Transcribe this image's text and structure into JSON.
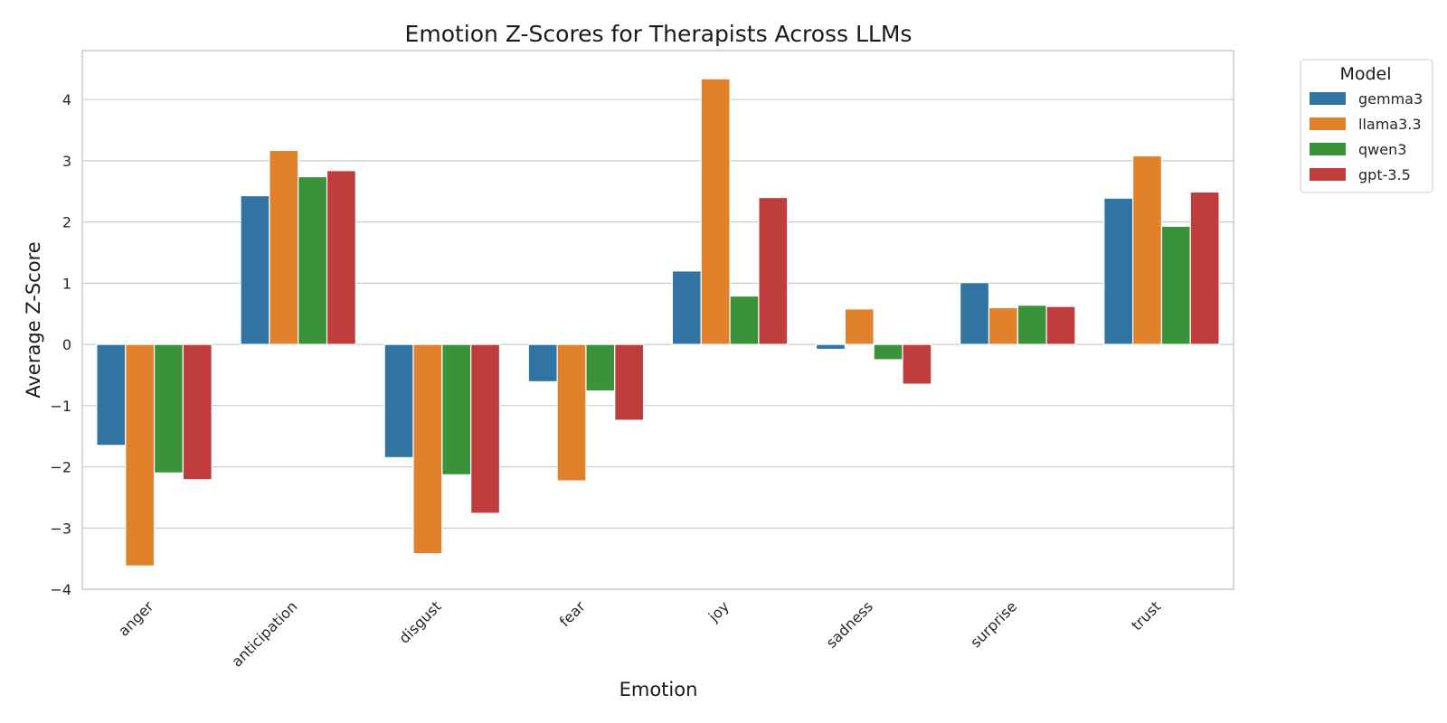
{
  "chart_data": {
    "type": "bar",
    "title": "Emotion Z-Scores for Therapists Across LLMs",
    "xlabel": "Emotion",
    "ylabel": "Average Z-Score",
    "categories": [
      "anger",
      "anticipation",
      "disgust",
      "fear",
      "joy",
      "sadness",
      "surprise",
      "trust"
    ],
    "series": [
      {
        "name": "gemma3",
        "color": "#3274a1",
        "values": [
          -1.65,
          2.43,
          -1.85,
          -0.61,
          1.2,
          -0.08,
          1.01,
          2.39
        ]
      },
      {
        "name": "llama3.3",
        "color": "#e1812c",
        "values": [
          -3.62,
          3.17,
          -3.42,
          -2.23,
          4.34,
          0.58,
          0.6,
          3.08
        ]
      },
      {
        "name": "qwen3",
        "color": "#3a923a",
        "values": [
          -2.1,
          2.74,
          -2.13,
          -0.76,
          0.79,
          -0.25,
          0.64,
          1.93
        ]
      },
      {
        "name": "gpt-3.5",
        "color": "#c03d3e",
        "values": [
          -2.21,
          2.84,
          -2.76,
          -1.24,
          2.4,
          -0.65,
          0.62,
          2.49
        ]
      }
    ],
    "ylim": [
      -4,
      4.8
    ],
    "yticks": [
      -4,
      -3,
      -2,
      -1,
      0,
      1,
      2,
      3,
      4
    ],
    "ytick_labels": [
      "−4",
      "−3",
      "−2",
      "−1",
      "0",
      "1",
      "2",
      "3",
      "4"
    ],
    "grid": true,
    "legend": {
      "title": "Model",
      "position": "outside-top-right"
    }
  }
}
